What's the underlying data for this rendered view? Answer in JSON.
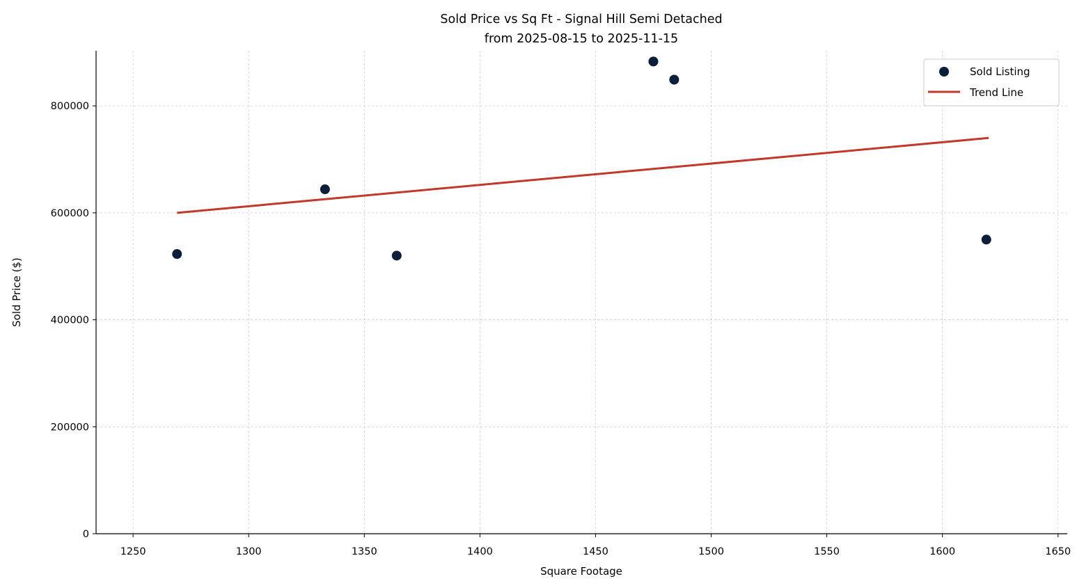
{
  "chart_data": {
    "type": "scatter",
    "title": "Sold Price vs Sq Ft - Signal Hill Semi Detached",
    "subtitle": "from 2025-08-15 to 2025-11-15",
    "xlabel": "Square Footage",
    "ylabel": "Sold Price ($)",
    "xlim": [
      1234,
      1654
    ],
    "ylim": [
      0,
      903000
    ],
    "xticks": [
      1250,
      1300,
      1350,
      1400,
      1450,
      1500,
      1550,
      1600,
      1650
    ],
    "yticks": [
      0,
      200000,
      400000,
      600000,
      800000
    ],
    "grid": true,
    "legend_position": "top-right",
    "series": [
      {
        "name": "Sold Listing",
        "kind": "scatter",
        "color": "#0b1f3a",
        "points": [
          [
            1269,
            523000
          ],
          [
            1333,
            644000
          ],
          [
            1364,
            520000
          ],
          [
            1475,
            883000
          ],
          [
            1484,
            849000
          ],
          [
            1619,
            550000
          ]
        ]
      },
      {
        "name": "Trend Line",
        "kind": "line",
        "color": "#c0392b",
        "points": [
          [
            1269,
            600000
          ],
          [
            1620,
            740000
          ]
        ]
      }
    ]
  }
}
